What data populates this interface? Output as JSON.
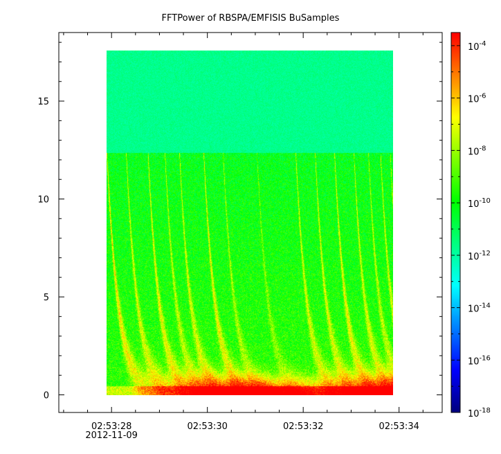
{
  "chart_data": {
    "type": "heatmap",
    "title": "FFTPower of RBSPA/EMFISIS  BuSamples",
    "xlabel": "",
    "ylabel": "",
    "grid": false,
    "x_range_seconds": [
      "02:53:26.9",
      "02:53:34.9"
    ],
    "data_extent": {
      "x_start": "02:53:28.1",
      "x_end": "02:53:34.0",
      "y_start": 0.0,
      "y_end": 17.5
    },
    "ylim": [
      -0.9,
      18.5
    ],
    "x_ticks": [
      {
        "label": "02:53:28",
        "sublabel": "2012-11-09"
      },
      {
        "label": "02:53:30"
      },
      {
        "label": "02:53:32"
      },
      {
        "label": "02:53:34"
      }
    ],
    "y_ticks": [
      "0",
      "5",
      "10",
      "15"
    ],
    "colorbar": {
      "scale": "log",
      "min_exponent": -18,
      "max_exponent": -3.5,
      "tick_exponents": [
        "-4",
        "-6",
        "-8",
        "-10",
        "-12",
        "-14",
        "-16",
        "-18"
      ],
      "tick_base": "10",
      "colors": [
        "#00007f",
        "#0000ff",
        "#0080ff",
        "#00ffff",
        "#00ff80",
        "#00ff00",
        "#80ff00",
        "#ffff00",
        "#ff8000",
        "#ff0000"
      ]
    },
    "features": {
      "upper_band_level_exponent": -11.7,
      "cutoff_y": 12.3,
      "chirp_start_times_seconds": [
        28.1,
        28.5,
        28.95,
        29.3,
        29.6,
        30.1,
        30.5,
        31.2,
        32.0,
        32.4,
        32.8,
        33.2,
        33.5,
        33.75,
        33.95
      ],
      "chirp_intensity_exponents": [
        -6.0,
        -7.0,
        -6.5,
        -7.5,
        -7.0,
        -6.5,
        -8.0,
        -8.5,
        -7.0,
        -7.0,
        -6.5,
        -7.0,
        -7.5,
        -7.0,
        -7.5
      ]
    }
  }
}
